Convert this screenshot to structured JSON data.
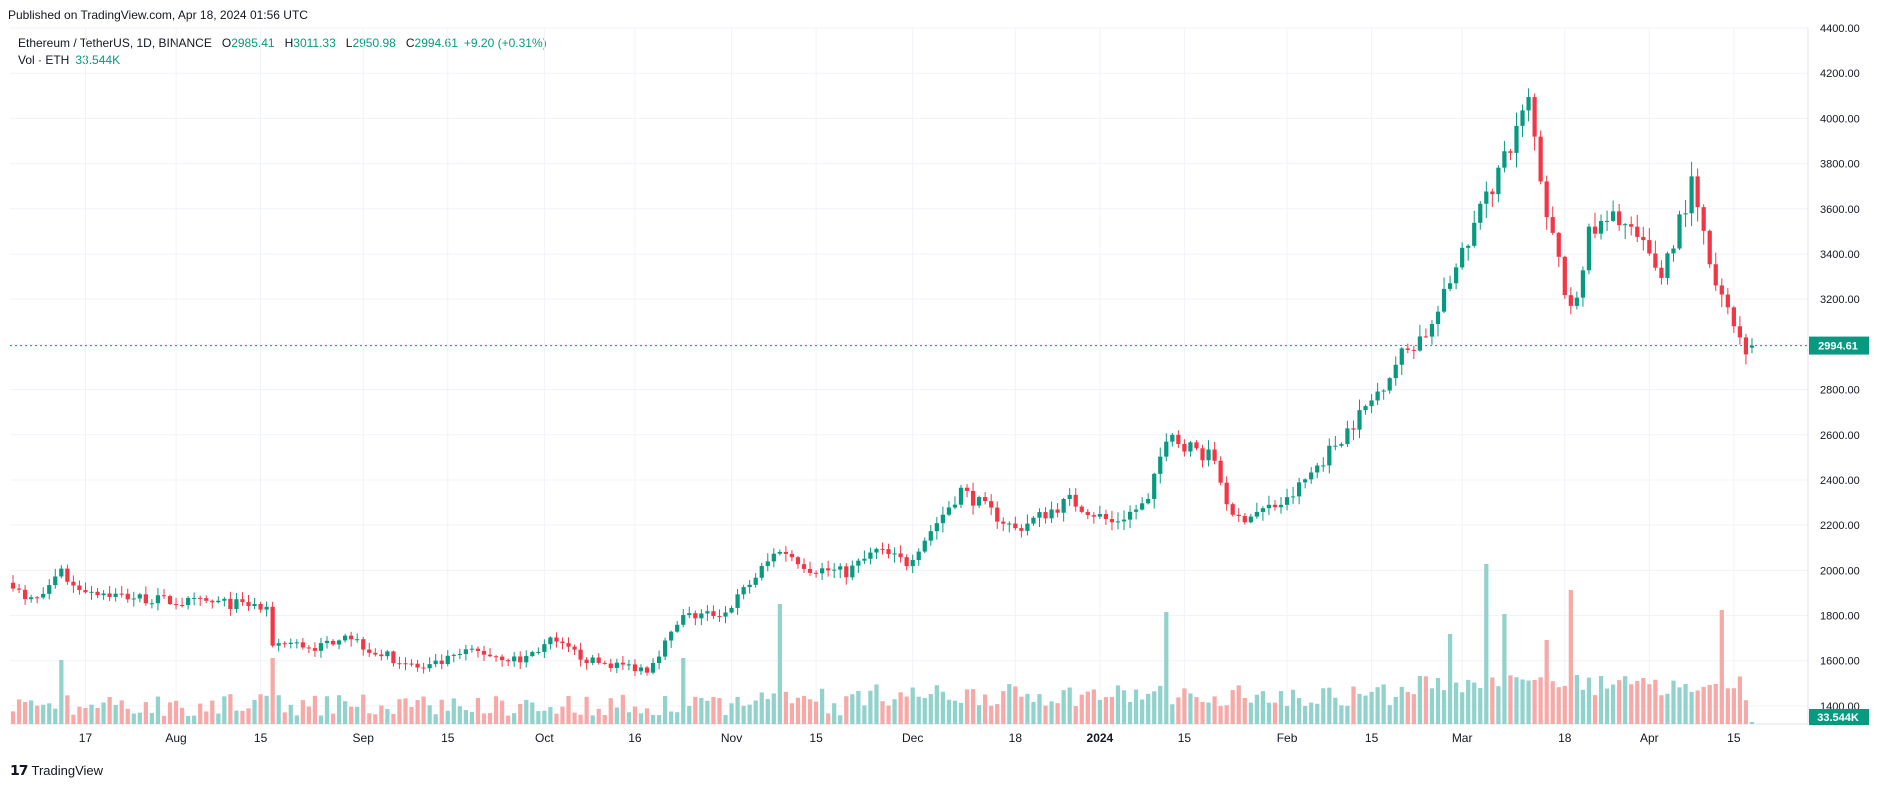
{
  "header": {
    "published": "Published on TradingView.com, Apr 18, 2024 01:56 UTC"
  },
  "legend": {
    "symbol": "Ethereum / TetherUS, 1D, BINANCE",
    "open_label": "O",
    "open": "2985.41",
    "high_label": "H",
    "high": "3011.33",
    "low_label": "L",
    "low": "2950.98",
    "close_label": "C",
    "close": "2994.61",
    "change": "+9.20 (+0.31%)",
    "vol_label": "Vol · ETH",
    "vol_value": "33.544K"
  },
  "footer": {
    "brand": "TradingView",
    "logo_icon": "tradingview-logo-icon"
  },
  "colors": {
    "up": "#089981",
    "down": "#f23645",
    "vol_up": "#92d2cc",
    "vol_down": "#f7a9a7",
    "grid": "#f0f3fa"
  },
  "chart_data": {
    "type": "candlestick",
    "title": "Ethereum / TetherUS, 1D, BINANCE",
    "ylim": [
      4400,
      1320
    ],
    "y_ticks": [
      4400,
      4200,
      4000,
      3800,
      3600,
      3400,
      3200,
      3000,
      2800,
      2600,
      2400,
      2200,
      2000,
      1800,
      1600,
      1400
    ],
    "y_tick_labels": [
      "4400.00",
      "4200.00",
      "4000.00",
      "3800.00",
      "3600.00",
      "3400.00",
      "3200.00",
      "3000.00",
      "2800.00",
      "2600.00",
      "2400.00",
      "2200.00",
      "2000.00",
      "1800.00",
      "1600.00",
      "1400.00"
    ],
    "x_tick_labels": [
      "17",
      "Aug",
      "15",
      "Sep",
      "15",
      "Oct",
      "16",
      "Nov",
      "15",
      "Dec",
      "18",
      "2024",
      "15",
      "Feb",
      "15",
      "Mar",
      "18",
      "Apr",
      "15"
    ],
    "x_tick_dates": [
      "2023-07-17",
      "2023-08-01",
      "2023-08-15",
      "2023-09-01",
      "2023-09-15",
      "2023-10-01",
      "2023-10-16",
      "2023-11-01",
      "2023-11-15",
      "2023-12-01",
      "2023-12-18",
      "2024-01-01",
      "2024-01-15",
      "2024-02-01",
      "2024-02-15",
      "2024-03-01",
      "2024-03-18",
      "2024-04-01",
      "2024-04-15"
    ],
    "last_price_label": "2994.61",
    "last_volume_label": "33.544K",
    "first_date": "2023-07-05",
    "last_date": "2024-04-18",
    "anchors": [
      [
        "2023-07-05",
        1945
      ],
      [
        "2023-07-07",
        1860
      ],
      [
        "2023-07-10",
        1875
      ],
      [
        "2023-07-13",
        1990
      ],
      [
        "2023-07-15",
        1930
      ],
      [
        "2023-07-22",
        1890
      ],
      [
        "2023-08-01",
        1860
      ],
      [
        "2023-08-08",
        1855
      ],
      [
        "2023-08-14",
        1845
      ],
      [
        "2023-08-16",
        1815
      ],
      [
        "2023-08-17",
        1680
      ],
      [
        "2023-08-25",
        1660
      ],
      [
        "2023-08-29",
        1725
      ],
      [
        "2023-09-02",
        1650
      ],
      [
        "2023-09-11",
        1560
      ],
      [
        "2023-09-19",
        1645
      ],
      [
        "2023-09-27",
        1600
      ],
      [
        "2023-10-02",
        1685
      ],
      [
        "2023-10-09",
        1595
      ],
      [
        "2023-10-18",
        1565
      ],
      [
        "2023-10-24",
        1790
      ],
      [
        "2023-10-31",
        1815
      ],
      [
        "2023-11-09",
        2100
      ],
      [
        "2023-11-14",
        2010
      ],
      [
        "2023-11-20",
        1990
      ],
      [
        "2023-11-25",
        2085
      ],
      [
        "2023-11-30",
        2035
      ],
      [
        "2023-12-09",
        2355
      ],
      [
        "2023-12-18",
        2180
      ],
      [
        "2023-12-27",
        2310
      ],
      [
        "2024-01-03",
        2210
      ],
      [
        "2024-01-09",
        2300
      ],
      [
        "2024-01-12",
        2600
      ],
      [
        "2024-01-20",
        2490
      ],
      [
        "2024-01-23",
        2220
      ],
      [
        "2024-02-01",
        2305
      ],
      [
        "2024-02-15",
        2750
      ],
      [
        "2024-02-20",
        2955
      ],
      [
        "2024-02-25",
        3080
      ],
      [
        "2024-03-05",
        3650
      ],
      [
        "2024-03-12",
        4070
      ],
      [
        "2024-03-15",
        3590
      ],
      [
        "2024-03-19",
        3130
      ],
      [
        "2024-03-22",
        3480
      ],
      [
        "2024-03-27",
        3570
      ],
      [
        "2024-04-03",
        3310
      ],
      [
        "2024-04-08",
        3700
      ],
      [
        "2024-04-12",
        3240
      ],
      [
        "2024-04-14",
        3150
      ],
      [
        "2024-04-17",
        2985
      ],
      [
        "2024-04-18",
        2994.61
      ]
    ],
    "volume_spikes": [
      [
        "2023-07-13",
        320
      ],
      [
        "2023-08-17",
        330
      ],
      [
        "2023-10-24",
        330
      ],
      [
        "2023-11-09",
        600
      ],
      [
        "2024-01-12",
        560
      ],
      [
        "2024-02-28",
        450
      ],
      [
        "2024-03-05",
        800
      ],
      [
        "2024-03-08",
        550
      ],
      [
        "2024-03-15",
        420
      ],
      [
        "2024-03-19",
        670
      ],
      [
        "2024-04-13",
        570
      ]
    ]
  }
}
